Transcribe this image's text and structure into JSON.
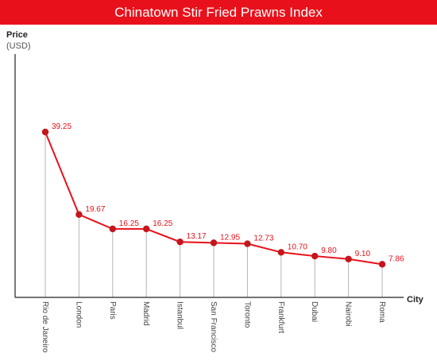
{
  "title": "Chinatown Stir Fried Prawns Index",
  "ylabel": "Price",
  "yunit": "(USD)",
  "xlabel": "City",
  "colors": {
    "accent": "#e8111b",
    "line": "#e8111b",
    "marker": "#c4161c",
    "dropline": "#b5b5b5",
    "axis": "#222222"
  },
  "chart_data": {
    "type": "line",
    "title": "Chinatown Stir Fried Prawns Index",
    "xlabel": "City",
    "ylabel": "Price",
    "yunit": "(USD)",
    "categories": [
      "Rio de Janeiro",
      "London",
      "Paris",
      "Madrid",
      "Istanbul",
      "San Francisco",
      "Toronto",
      "Frankfurt",
      "Dubai",
      "Nairobi",
      "Roma"
    ],
    "values": [
      39.25,
      19.67,
      16.25,
      16.25,
      13.17,
      12.95,
      12.73,
      10.7,
      9.8,
      9.1,
      7.86
    ],
    "data_labels": [
      "39.25",
      "19.67",
      "16.25",
      "16.25",
      "13.17",
      "12.95",
      "12.73",
      "10.70",
      "9.80",
      "9.10",
      "7.86"
    ],
    "ylim": [
      0,
      55
    ],
    "grid": false,
    "legend": "none"
  }
}
